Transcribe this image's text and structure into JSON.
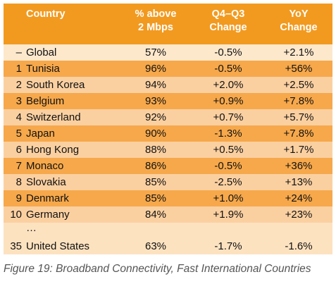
{
  "header": {
    "country": "Country",
    "pct_line1": "% above",
    "pct_line2": "2 Mbps",
    "qoq_line1": "Q4–Q3",
    "qoq_line2": "Change",
    "yoy_line1": "YoY",
    "yoy_line2": "Change"
  },
  "global": {
    "rank": "–",
    "country": "Global",
    "pct": "57%",
    "qoq": "-0.5%",
    "yoy": "+2.1%"
  },
  "rows": [
    {
      "rank": "1",
      "country": "Tunisia",
      "pct": "96%",
      "qoq": "-0.5%",
      "yoy": "+56%"
    },
    {
      "rank": "2",
      "country": "South Korea",
      "pct": "94%",
      "qoq": "+2.0%",
      "yoy": "+2.5%"
    },
    {
      "rank": "3",
      "country": "Belgium",
      "pct": "93%",
      "qoq": "+0.9%",
      "yoy": "+7.8%"
    },
    {
      "rank": "4",
      "country": "Switzerland",
      "pct": "92%",
      "qoq": "+0.7%",
      "yoy": "+5.7%"
    },
    {
      "rank": "5",
      "country": "Japan",
      "pct": "90%",
      "qoq": "-1.3%",
      "yoy": "+7.8%"
    },
    {
      "rank": "6",
      "country": "Hong Kong",
      "pct": "88%",
      "qoq": "+0.5%",
      "yoy": "+1.7%"
    },
    {
      "rank": "7",
      "country": "Monaco",
      "pct": "86%",
      "qoq": "-0.5%",
      "yoy": "+36%"
    },
    {
      "rank": "8",
      "country": "Slovakia",
      "pct": "85%",
      "qoq": "-2.5%",
      "yoy": "+13%"
    },
    {
      "rank": "9",
      "country": "Denmark",
      "pct": "85%",
      "qoq": "+1.0%",
      "yoy": "+24%"
    },
    {
      "rank": "10",
      "country": "Germany",
      "pct": "84%",
      "qoq": "+1.9%",
      "yoy": "+23%"
    }
  ],
  "ellipsis": "…",
  "us_row": {
    "rank": "35",
    "country": "United States",
    "pct": "63%",
    "qoq": "-1.7%",
    "yoy": "-1.6%"
  },
  "caption": "Figure 19: Broadband Connectivity, Fast International Countries",
  "colors": {
    "header": "#f29a1f",
    "row_dark": "#f6a84b",
    "row_light": "#fbd0a1",
    "global": "#fde8cc"
  }
}
